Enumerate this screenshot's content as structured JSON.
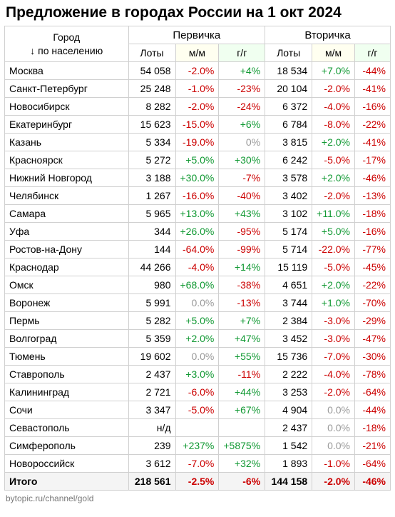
{
  "title": "Предложение в городах России на 1 окт 2024",
  "header": {
    "city_label_line1": "Город",
    "city_label_line2": "↓ по населению",
    "group1": "Первичка",
    "group2": "Вторичка",
    "lots": "Лоты",
    "mm": "м/м",
    "yy": "г/г"
  },
  "colors": {
    "negative": "#cc0000",
    "positive": "#119933",
    "zero": "#999999",
    "mm_bg": "#fffff0",
    "yy_bg": "#f0fff0",
    "border": "#d0d0d0",
    "total_bg": "#f4f4f4",
    "footer_text": "#777777"
  },
  "footer": "bytopic.ru/channel/gold",
  "rows": [
    {
      "city": "Москва",
      "p_lots": "54 058",
      "p_mm": "-2.0%",
      "p_yy": "+4%",
      "s_lots": "18 534",
      "s_mm": "+7.0%",
      "s_yy": "-44%"
    },
    {
      "city": "Санкт-Петербург",
      "p_lots": "25 248",
      "p_mm": "-1.0%",
      "p_yy": "-23%",
      "s_lots": "20 104",
      "s_mm": "-2.0%",
      "s_yy": "-41%"
    },
    {
      "city": "Новосибирск",
      "p_lots": "8 282",
      "p_mm": "-2.0%",
      "p_yy": "-24%",
      "s_lots": "6 372",
      "s_mm": "-4.0%",
      "s_yy": "-16%"
    },
    {
      "city": "Екатеринбург",
      "p_lots": "15 623",
      "p_mm": "-15.0%",
      "p_yy": "+6%",
      "s_lots": "6 784",
      "s_mm": "-8.0%",
      "s_yy": "-22%"
    },
    {
      "city": "Казань",
      "p_lots": "5 334",
      "p_mm": "-19.0%",
      "p_yy": "0%",
      "s_lots": "3 815",
      "s_mm": "+2.0%",
      "s_yy": "-41%"
    },
    {
      "city": "Красноярск",
      "p_lots": "5 272",
      "p_mm": "+5.0%",
      "p_yy": "+30%",
      "s_lots": "6 242",
      "s_mm": "-5.0%",
      "s_yy": "-17%"
    },
    {
      "city": "Нижний Новгород",
      "p_lots": "3 188",
      "p_mm": "+30.0%",
      "p_yy": "-7%",
      "s_lots": "3 578",
      "s_mm": "+2.0%",
      "s_yy": "-46%"
    },
    {
      "city": "Челябинск",
      "p_lots": "1 267",
      "p_mm": "-16.0%",
      "p_yy": "-40%",
      "s_lots": "3 402",
      "s_mm": "-2.0%",
      "s_yy": "-13%"
    },
    {
      "city": "Самара",
      "p_lots": "5 965",
      "p_mm": "+13.0%",
      "p_yy": "+43%",
      "s_lots": "3 102",
      "s_mm": "+11.0%",
      "s_yy": "-18%"
    },
    {
      "city": "Уфа",
      "p_lots": "344",
      "p_mm": "+26.0%",
      "p_yy": "-95%",
      "s_lots": "5 174",
      "s_mm": "+5.0%",
      "s_yy": "-16%"
    },
    {
      "city": "Ростов-на-Дону",
      "p_lots": "144",
      "p_mm": "-64.0%",
      "p_yy": "-99%",
      "s_lots": "5 714",
      "s_mm": "-22.0%",
      "s_yy": "-77%"
    },
    {
      "city": "Краснодар",
      "p_lots": "44 266",
      "p_mm": "-4.0%",
      "p_yy": "+14%",
      "s_lots": "15 119",
      "s_mm": "-5.0%",
      "s_yy": "-45%"
    },
    {
      "city": "Омск",
      "p_lots": "980",
      "p_mm": "+68.0%",
      "p_yy": "-38%",
      "s_lots": "4 651",
      "s_mm": "+2.0%",
      "s_yy": "-22%"
    },
    {
      "city": "Воронеж",
      "p_lots": "5 991",
      "p_mm": "0.0%",
      "p_yy": "-13%",
      "s_lots": "3 744",
      "s_mm": "+1.0%",
      "s_yy": "-70%"
    },
    {
      "city": "Пермь",
      "p_lots": "5 282",
      "p_mm": "+5.0%",
      "p_yy": "+7%",
      "s_lots": "2 384",
      "s_mm": "-3.0%",
      "s_yy": "-29%"
    },
    {
      "city": "Волгоград",
      "p_lots": "5 359",
      "p_mm": "+2.0%",
      "p_yy": "+47%",
      "s_lots": "3 452",
      "s_mm": "-3.0%",
      "s_yy": "-47%"
    },
    {
      "city": "Тюмень",
      "p_lots": "19 602",
      "p_mm": "0.0%",
      "p_yy": "+55%",
      "s_lots": "15 736",
      "s_mm": "-7.0%",
      "s_yy": "-30%"
    },
    {
      "city": "Ставрополь",
      "p_lots": "2 437",
      "p_mm": "+3.0%",
      "p_yy": "-11%",
      "s_lots": "2 222",
      "s_mm": "-4.0%",
      "s_yy": "-78%"
    },
    {
      "city": "Калининград",
      "p_lots": "2 721",
      "p_mm": "-6.0%",
      "p_yy": "+44%",
      "s_lots": "3 253",
      "s_mm": "-2.0%",
      "s_yy": "-64%"
    },
    {
      "city": "Сочи",
      "p_lots": "3 347",
      "p_mm": "-5.0%",
      "p_yy": "+67%",
      "s_lots": "4 904",
      "s_mm": "0.0%",
      "s_yy": "-44%"
    },
    {
      "city": "Севастополь",
      "p_lots": "н/д",
      "p_mm": "",
      "p_yy": "",
      "s_lots": "2 437",
      "s_mm": "0.0%",
      "s_yy": "-18%"
    },
    {
      "city": "Симферополь",
      "p_lots": "239",
      "p_mm": "+237%",
      "p_yy": "+5875%",
      "s_lots": "1 542",
      "s_mm": "0.0%",
      "s_yy": "-21%"
    },
    {
      "city": "Новороссийск",
      "p_lots": "3 612",
      "p_mm": "-7.0%",
      "p_yy": "+32%",
      "s_lots": "1 893",
      "s_mm": "-1.0%",
      "s_yy": "-64%"
    }
  ],
  "total": {
    "city": "Итого",
    "p_lots": "218 561",
    "p_mm": "-2.5%",
    "p_yy": "-6%",
    "s_lots": "144 158",
    "s_mm": "-2.0%",
    "s_yy": "-46%"
  }
}
